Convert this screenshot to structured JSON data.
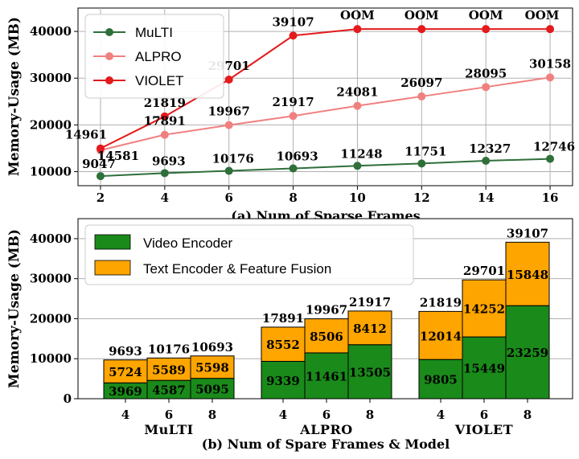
{
  "chart_data": [
    {
      "type": "line",
      "caption": "(a) Num of Sparse Frames",
      "ylabel": "Memory-Usage (MB)",
      "x": [
        2,
        4,
        6,
        8,
        10,
        12,
        14,
        16
      ],
      "ylim": [
        7000,
        45000
      ],
      "yticks": [
        10000,
        20000,
        30000,
        40000
      ],
      "xlim": [
        1.3,
        16.7
      ],
      "grid": true,
      "legend_position": "top-left",
      "series": [
        {
          "name": "MuLTI",
          "color": "#2f6f3a",
          "values": [
            9047,
            9693,
            10176,
            10693,
            11248,
            11751,
            12327,
            12746
          ],
          "labels": [
            "9047",
            "9693",
            "10176",
            "10693",
            "11248",
            "11751",
            "12327",
            "12746"
          ]
        },
        {
          "name": "ALPRO",
          "color": "#f08080",
          "values": [
            14581,
            17891,
            19967,
            21917,
            24081,
            26097,
            28095,
            30158
          ],
          "labels": [
            "14581",
            "17891",
            "19967",
            "21917",
            "24081",
            "26097",
            "28095",
            "30158"
          ]
        },
        {
          "name": "VIOLET",
          "color": "#e41a1c",
          "values": [
            14961,
            21819,
            29701,
            39107,
            40500,
            40500,
            40500,
            40500
          ],
          "labels": [
            "14961",
            "21819",
            "29701",
            "39107",
            "OOM",
            "OOM",
            "OOM",
            "OOM"
          ]
        }
      ]
    },
    {
      "type": "bar",
      "stacked": true,
      "caption": "(b) Num of Spare Frames & Model",
      "ylabel": "Memory-Usage (MB)",
      "ylim": [
        0,
        45000
      ],
      "yticks": [
        0,
        10000,
        20000,
        30000,
        40000
      ],
      "grid": true,
      "legend_position": "top-left",
      "groups": [
        "MuLTI",
        "ALPRO",
        "VIOLET"
      ],
      "categories": [
        "4",
        "6",
        "8"
      ],
      "series": [
        {
          "name": "Video Encoder",
          "color": "#1a8a1a",
          "values": [
            [
              3969,
              4587,
              5095
            ],
            [
              9339,
              11461,
              13505
            ],
            [
              9805,
              15449,
              23259
            ]
          ]
        },
        {
          "name": "Text Encoder & Feature Fusion",
          "color": "#ffa500",
          "values": [
            [
              5724,
              5589,
              5598
            ],
            [
              8552,
              8506,
              8412
            ],
            [
              12014,
              14252,
              15848
            ]
          ]
        }
      ],
      "totals": [
        [
          9693,
          10176,
          10693
        ],
        [
          17891,
          19967,
          21917
        ],
        [
          21819,
          29701,
          39107
        ]
      ]
    }
  ]
}
